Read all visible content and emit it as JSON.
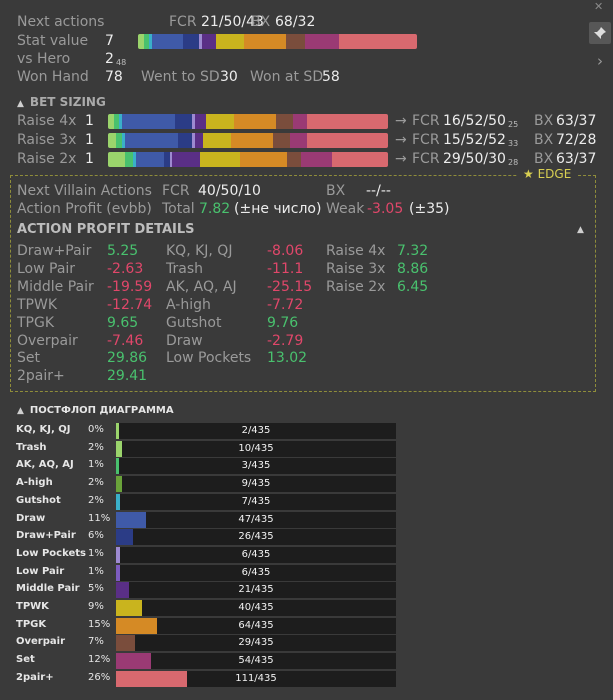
{
  "top": {
    "next_actions_label": "Next actions",
    "fcr_label": "FCR",
    "fcr_value": "21/50/43",
    "bx_label": "BX",
    "bx_value": "68/32",
    "stat_value_label": "Stat value",
    "stat_value": "7",
    "vs_hero_label": "vs Hero",
    "vs_hero_value": "2",
    "vs_hero_sub": "48",
    "won_hand_label": "Won Hand",
    "won_hand_value": "78",
    "went_sd_label": "Went to SD",
    "went_sd_value": "30",
    "won_sd_label": "Won at SD",
    "won_sd_value": "58",
    "stat_bar": [
      {
        "color": "#9bd46c",
        "frac": 0.02
      },
      {
        "color": "#49c16e",
        "frac": 0.02
      },
      {
        "color": "#3ab0c9",
        "frac": 0.01
      },
      {
        "color": "#3f5aa8",
        "frac": 0.11
      },
      {
        "color": "#2b3c86",
        "frac": 0.06
      },
      {
        "color": "#9d8ad1",
        "frac": 0.01
      },
      {
        "color": "#5a2f86",
        "frac": 0.05
      },
      {
        "color": "#c9b41e",
        "frac": 0.1
      },
      {
        "color": "#d58a25",
        "frac": 0.15
      },
      {
        "color": "#7a4d3c",
        "frac": 0.07
      },
      {
        "color": "#9a3a74",
        "frac": 0.12
      },
      {
        "color": "#d8696f",
        "frac": 0.28
      }
    ]
  },
  "icons": {
    "pin": "pin-icon",
    "chevron_right": "chevron-right-icon",
    "chevron_up": "chevron-up-icon",
    "star": "star-icon"
  },
  "bet_sizing": {
    "title": "BET SIZING",
    "rows": [
      {
        "label": "Raise 4x",
        "count": "1",
        "arrow": "→",
        "fcr_label": "FCR",
        "fcr": "16/52/50",
        "fcr_sub": "25",
        "bx_label": "BX",
        "bx": "63/37",
        "bar": [
          {
            "color": "#9bd46c",
            "frac": 0.02
          },
          {
            "color": "#49c16e",
            "frac": 0.02
          },
          {
            "color": "#3ab0c9",
            "frac": 0.01
          },
          {
            "color": "#3f5aa8",
            "frac": 0.19
          },
          {
            "color": "#2b3c86",
            "frac": 0.06
          },
          {
            "color": "#9d8ad1",
            "frac": 0.01
          },
          {
            "color": "#5a2f86",
            "frac": 0.04
          },
          {
            "color": "#c9b41e",
            "frac": 0.1
          },
          {
            "color": "#d58a25",
            "frac": 0.15
          },
          {
            "color": "#7a4d3c",
            "frac": 0.06
          },
          {
            "color": "#9a3a74",
            "frac": 0.05
          },
          {
            "color": "#d8696f",
            "frac": 0.29
          }
        ]
      },
      {
        "label": "Raise 3x",
        "count": "1",
        "arrow": "→",
        "fcr_label": "FCR",
        "fcr": "15/52/52",
        "fcr_sub": "33",
        "bx_label": "BX",
        "bx": "72/28",
        "bar": [
          {
            "color": "#9bd46c",
            "frac": 0.03
          },
          {
            "color": "#49c16e",
            "frac": 0.02
          },
          {
            "color": "#3ab0c9",
            "frac": 0.01
          },
          {
            "color": "#3f5aa8",
            "frac": 0.19
          },
          {
            "color": "#2b3c86",
            "frac": 0.05
          },
          {
            "color": "#9d8ad1",
            "frac": 0.01
          },
          {
            "color": "#5a2f86",
            "frac": 0.03
          },
          {
            "color": "#c9b41e",
            "frac": 0.1
          },
          {
            "color": "#d58a25",
            "frac": 0.15
          },
          {
            "color": "#7a4d3c",
            "frac": 0.06
          },
          {
            "color": "#9a3a74",
            "frac": 0.06
          },
          {
            "color": "#d8696f",
            "frac": 0.29
          }
        ]
      },
      {
        "label": "Raise 2x",
        "count": "1",
        "arrow": "→",
        "fcr_label": "FCR",
        "fcr": "29/50/30",
        "fcr_sub": "28",
        "bx_label": "BX",
        "bx": "63/37",
        "bar": [
          {
            "color": "#9bd46c",
            "frac": 0.06
          },
          {
            "color": "#49c16e",
            "frac": 0.03
          },
          {
            "color": "#3ab0c9",
            "frac": 0.01
          },
          {
            "color": "#3f5aa8",
            "frac": 0.1
          },
          {
            "color": "#2b3c86",
            "frac": 0.02
          },
          {
            "color": "#9d8ad1",
            "frac": 0.01
          },
          {
            "color": "#5a2f86",
            "frac": 0.1
          },
          {
            "color": "#c9b41e",
            "frac": 0.14
          },
          {
            "color": "#d58a25",
            "frac": 0.17
          },
          {
            "color": "#7a4d3c",
            "frac": 0.05
          },
          {
            "color": "#9a3a74",
            "frac": 0.11
          },
          {
            "color": "#d8696f",
            "frac": 0.2
          }
        ]
      }
    ]
  },
  "edge": {
    "badge": "EDGE",
    "next_villain_label": "Next Villain Actions",
    "fcr_label": "FCR",
    "fcr_value": "40/50/10",
    "bx_label": "BX",
    "bx_value": "--/--",
    "action_profit_label": "Action Profit (evbb)",
    "total_label": "Total",
    "total_value": "7.82",
    "total_note": "(±не число)",
    "weak_label": "Weak",
    "weak_value": "-3.05",
    "weak_note": "(±35)",
    "details_title": "ACTION PROFIT DETAILS",
    "col1": [
      {
        "label": "Draw+Pair",
        "value": "5.25",
        "sign": "pos"
      },
      {
        "label": "Low Pair",
        "value": "-2.63",
        "sign": "neg"
      },
      {
        "label": "Middle Pair",
        "value": "-19.59",
        "sign": "neg"
      },
      {
        "label": "TPWK",
        "value": "-12.74",
        "sign": "neg"
      },
      {
        "label": "TPGK",
        "value": "9.65",
        "sign": "pos"
      },
      {
        "label": "Overpair",
        "value": "-7.46",
        "sign": "neg"
      },
      {
        "label": "Set",
        "value": "29.86",
        "sign": "pos"
      },
      {
        "label": "2pair+",
        "value": "29.41",
        "sign": "pos"
      }
    ],
    "col2": [
      {
        "label": "KQ, KJ, QJ",
        "value": "-8.06",
        "sign": "neg"
      },
      {
        "label": "Trash",
        "value": "-11.1",
        "sign": "neg"
      },
      {
        "label": "AK, AQ, AJ",
        "value": "-25.15",
        "sign": "neg"
      },
      {
        "label": "A-high",
        "value": "-7.72",
        "sign": "neg"
      },
      {
        "label": "Gutshot",
        "value": "9.76",
        "sign": "pos"
      },
      {
        "label": "Draw",
        "value": "-2.79",
        "sign": "neg"
      },
      {
        "label": "Low Pockets",
        "value": "13.02",
        "sign": "pos"
      }
    ],
    "col3": [
      {
        "label": "Raise 4x",
        "value": "7.32",
        "sign": "pos"
      },
      {
        "label": "Raise 3x",
        "value": "8.86",
        "sign": "pos"
      },
      {
        "label": "Raise 2x",
        "value": "6.45",
        "sign": "pos"
      }
    ]
  },
  "postflop": {
    "title": "ПОСТФЛОП ДИАГРАММА",
    "rows": [
      {
        "label": "KQ, KJ, QJ",
        "pct": "0%",
        "count": "2/435",
        "fill": 0.005,
        "color": "#9bd46c"
      },
      {
        "label": "Trash",
        "pct": "2%",
        "count": "10/435",
        "fill": 0.023,
        "color": "#9bd46c"
      },
      {
        "label": "AK, AQ, AJ",
        "pct": "1%",
        "count": "3/435",
        "fill": 0.007,
        "color": "#49c16e"
      },
      {
        "label": "A-high",
        "pct": "2%",
        "count": "9/435",
        "fill": 0.021,
        "color": "#6aa33a"
      },
      {
        "label": "Gutshot",
        "pct": "2%",
        "count": "7/435",
        "fill": 0.016,
        "color": "#3ab0c9"
      },
      {
        "label": "Draw",
        "pct": "11%",
        "count": "47/435",
        "fill": 0.108,
        "color": "#3f5aa8"
      },
      {
        "label": "Draw+Pair",
        "pct": "6%",
        "count": "26/435",
        "fill": 0.06,
        "color": "#2b3c86"
      },
      {
        "label": "Low Pockets",
        "pct": "1%",
        "count": "6/435",
        "fill": 0.014,
        "color": "#9d8ad1"
      },
      {
        "label": "Low Pair",
        "pct": "1%",
        "count": "6/435",
        "fill": 0.014,
        "color": "#7d5cc0"
      },
      {
        "label": "Middle Pair",
        "pct": "5%",
        "count": "21/435",
        "fill": 0.048,
        "color": "#5a2f86"
      },
      {
        "label": "TPWK",
        "pct": "9%",
        "count": "40/435",
        "fill": 0.092,
        "color": "#c9b41e"
      },
      {
        "label": "TPGK",
        "pct": "15%",
        "count": "64/435",
        "fill": 0.147,
        "color": "#d58a25"
      },
      {
        "label": "Overpair",
        "pct": "7%",
        "count": "29/435",
        "fill": 0.067,
        "color": "#7a4d3c"
      },
      {
        "label": "Set",
        "pct": "12%",
        "count": "54/435",
        "fill": 0.124,
        "color": "#9a3a74"
      },
      {
        "label": "2pair+",
        "pct": "26%",
        "count": "111/435",
        "fill": 0.255,
        "color": "#d8696f"
      }
    ]
  }
}
